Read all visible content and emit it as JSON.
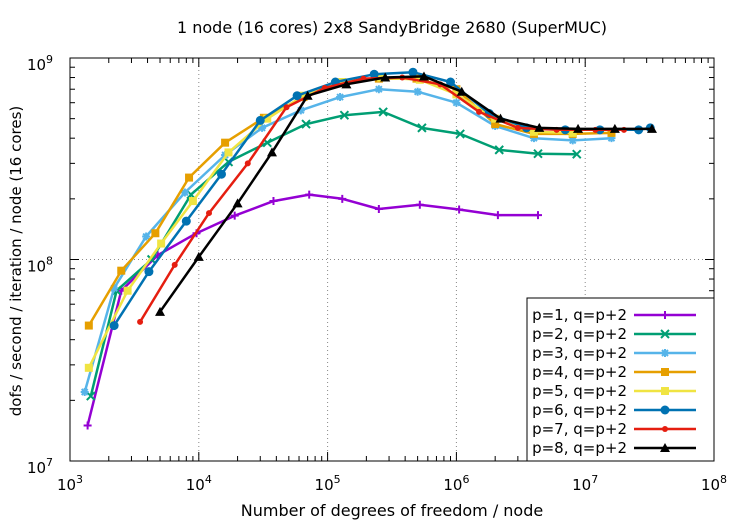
{
  "chart_data": {
    "type": "line",
    "title": "1 node (16 cores) 2x8 SandyBridge 2680 (SuperMUC)",
    "xlabel": "Number of degrees of freedom / node",
    "ylabel": "dofs / second / iteration / node (16 cores)",
    "xscale": "log",
    "yscale": "log",
    "xlim": [
      1000,
      100000000
    ],
    "ylim": [
      10000000,
      1000000000
    ],
    "grid": true,
    "legend_position": "bottom-right",
    "x_ticks": [
      {
        "base": "10",
        "exp": "3",
        "value": 1000
      },
      {
        "base": "10",
        "exp": "4",
        "value": 10000
      },
      {
        "base": "10",
        "exp": "5",
        "value": 100000
      },
      {
        "base": "10",
        "exp": "6",
        "value": 1000000
      },
      {
        "base": "10",
        "exp": "7",
        "value": 10000000
      },
      {
        "base": "10",
        "exp": "8",
        "value": 100000000
      }
    ],
    "y_ticks": [
      {
        "base": "10",
        "exp": "7",
        "value": 10000000
      },
      {
        "base": "10",
        "exp": "8",
        "value": 100000000
      },
      {
        "base": "10",
        "exp": "9",
        "value": 1000000000
      }
    ],
    "series": [
      {
        "name": "p=1, q=p+2",
        "color": "#9400d3",
        "marker": "plus",
        "x": [
          1370,
          2500,
          4800,
          9600,
          19000,
          38000,
          72000,
          130000,
          250000,
          520000,
          1050000,
          2100000,
          4300000
        ],
        "y": [
          15000000,
          70000000,
          105000000,
          135000000,
          165000000,
          195000000,
          210000000,
          200000000,
          178000000,
          187000000,
          177000000,
          166000000,
          166000000
        ]
      },
      {
        "name": "p=2, q=p+2",
        "color": "#009e73",
        "marker": "cross",
        "x": [
          1450,
          2300,
          4300,
          8700,
          17000,
          34000,
          68000,
          135000,
          270000,
          540000,
          1070000,
          2150000,
          4300000,
          8600000
        ],
        "y": [
          21000000,
          70000000,
          100000000,
          210000000,
          305000000,
          380000000,
          470000000,
          520000000,
          540000000,
          450000000,
          420000000,
          350000000,
          335000000,
          333000000
        ]
      },
      {
        "name": "p=3, q=p+2",
        "color": "#56b4e9",
        "marker": "star",
        "x": [
          1300,
          2200,
          3900,
          7800,
          16000,
          31000,
          62000,
          125000,
          250000,
          500000,
          1000000,
          2000000,
          4000000,
          8000000,
          16000000
        ],
        "y": [
          22000000,
          72000000,
          130000000,
          215000000,
          330000000,
          450000000,
          550000000,
          640000000,
          700000000,
          680000000,
          600000000,
          460000000,
          400000000,
          390000000,
          400000000
        ]
      },
      {
        "name": "p=4, q=p+2",
        "color": "#e69f00",
        "marker": "square",
        "x": [
          1400,
          2500,
          4600,
          8400,
          16000,
          32000,
          65000,
          125000,
          250000,
          490000,
          1000000,
          2000000,
          4000000,
          8000000,
          16000000
        ],
        "y": [
          47000000,
          88000000,
          135000000,
          255000000,
          380000000,
          505000000,
          640000000,
          750000000,
          790000000,
          790000000,
          700000000,
          470000000,
          420000000,
          420000000,
          425000000
        ]
      },
      {
        "name": "p=5, q=p+2",
        "color": "#f0e442",
        "marker": "square",
        "x": [
          1400,
          2800,
          5100,
          9000,
          17000,
          34000,
          65000,
          130000,
          260000,
          520000,
          1000000,
          2000000,
          4000000,
          8000000
        ],
        "y": [
          29000000,
          70000000,
          120000000,
          195000000,
          340000000,
          500000000,
          650000000,
          760000000,
          800000000,
          780000000,
          660000000,
          500000000,
          430000000,
          425000000
        ]
      },
      {
        "name": "p=6, q=p+2",
        "color": "#0072b2",
        "marker": "circle",
        "x": [
          2200,
          4100,
          8000,
          15000,
          30000,
          58000,
          115000,
          230000,
          460000,
          900000,
          1800000,
          3500000,
          7000000,
          13000000,
          26000000,
          32000000
        ],
        "y": [
          47000000,
          87000000,
          155000000,
          265000000,
          490000000,
          650000000,
          760000000,
          830000000,
          850000000,
          760000000,
          530000000,
          450000000,
          440000000,
          440000000,
          440000000,
          450000000
        ]
      },
      {
        "name": "p=7, q=p+2",
        "color": "#e51e10",
        "marker": "dot",
        "x": [
          3500,
          6500,
          12000,
          24000,
          48000,
          95000,
          190000,
          380000,
          750000,
          1500000,
          3000000,
          6000000,
          12000000,
          20000000
        ],
        "y": [
          49000000,
          94000000,
          170000000,
          300000000,
          570000000,
          710000000,
          790000000,
          800000000,
          740000000,
          540000000,
          450000000,
          440000000,
          440000000,
          440000000
        ]
      },
      {
        "name": "p=8, q=p+2",
        "color": "#000000",
        "marker": "triangle",
        "x": [
          5000,
          10000,
          20000,
          37000,
          70000,
          140000,
          280000,
          560000,
          1100000,
          2200000,
          4400000,
          8800000,
          17000000,
          33000000
        ],
        "y": [
          55000000,
          103000000,
          190000000,
          340000000,
          650000000,
          740000000,
          800000000,
          810000000,
          680000000,
          500000000,
          450000000,
          445000000,
          445000000,
          445000000
        ]
      }
    ]
  }
}
